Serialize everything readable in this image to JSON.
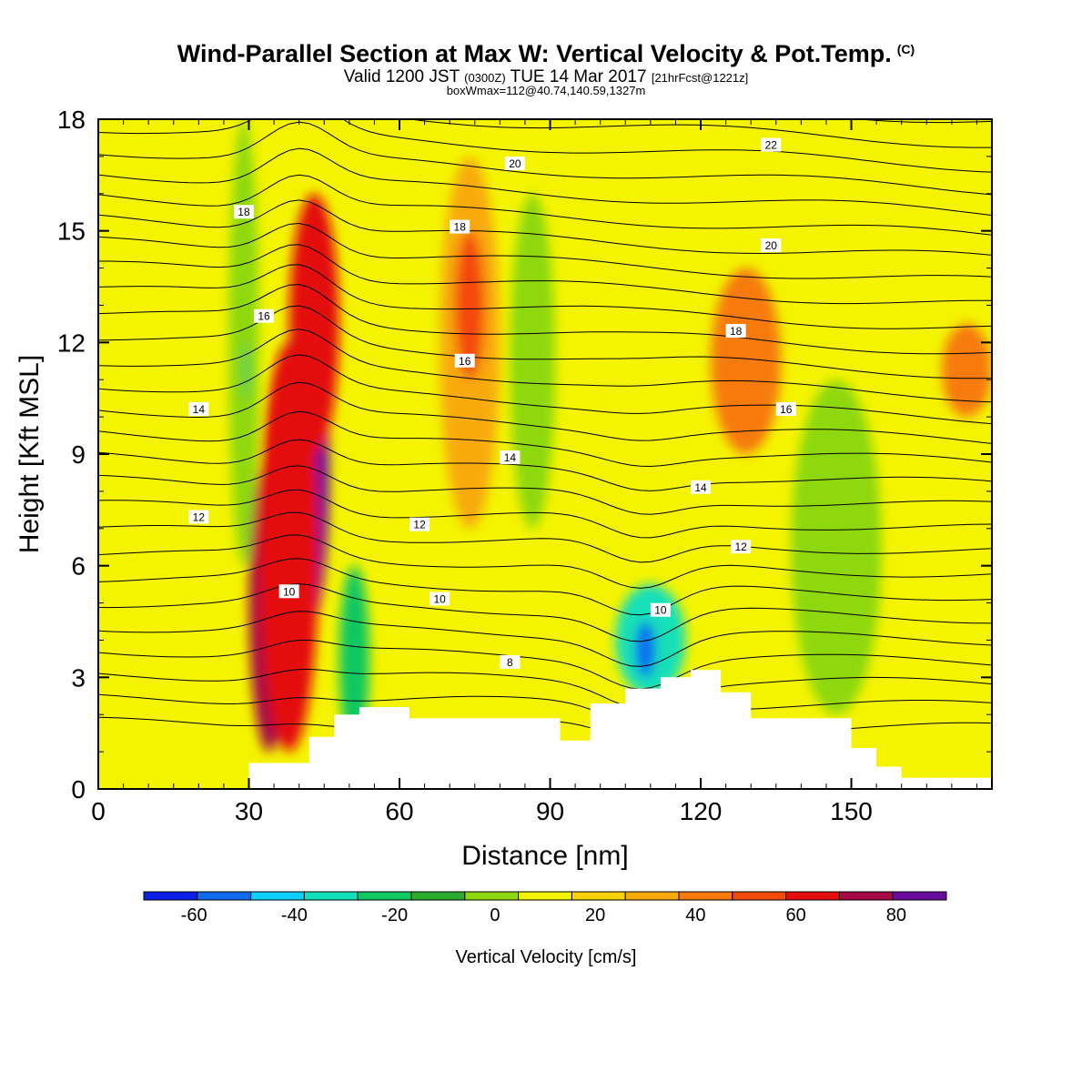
{
  "header": {
    "title": "Wind-Parallel Section at Max W: Vertical Velocity & Pot.Temp.",
    "copyright": "(C)",
    "valid_a": "Valid 1200 JST ",
    "valid_z": "(0300Z)",
    "valid_b": " TUE 14 Mar 2017 ",
    "valid_fcst": "[21hrFcst@1221z]",
    "boxwmax": "boxWmax=112@40.74,140.59,1327m"
  },
  "chart_data": {
    "type": "heatmap",
    "xlabel": "Distance [nm]",
    "ylabel": "Height [Kft MSL]",
    "xlim": [
      0,
      178
    ],
    "ylim": [
      0,
      18
    ],
    "xticks": [
      0,
      30,
      60,
      90,
      120,
      150
    ],
    "yticks": [
      0,
      3,
      6,
      9,
      12,
      15,
      18
    ],
    "colorbar": {
      "label": "Vertical Velocity [cm/s]",
      "bounds": [
        -70,
        -60,
        -50,
        -40,
        -30,
        -20,
        -10,
        0,
        10,
        20,
        30,
        40,
        50,
        60,
        70,
        80,
        90
      ],
      "colors": [
        "#0b1fe6",
        "#0f6af0",
        "#0ccfff",
        "#12e0b8",
        "#0fc862",
        "#2aad2c",
        "#8ed80c",
        "#f4f400",
        "#f9d205",
        "#f8aa0a",
        "#f77a0d",
        "#f44a07",
        "#e40e0e",
        "#a50a46",
        "#6b0ca0"
      ],
      "tick_labels": [
        "-60",
        "-40",
        "-20",
        "0",
        "20",
        "40",
        "60",
        "80"
      ]
    },
    "vertical_velocity_cells": [
      {
        "x": [
          0,
          10
        ],
        "z": [
          1,
          16
        ],
        "w": 8
      },
      {
        "x": [
          30,
          38
        ],
        "z": [
          1,
          9
        ],
        "w": 65
      },
      {
        "x": [
          36,
          46
        ],
        "z": [
          4,
          13
        ],
        "w": 80
      },
      {
        "x": [
          32,
          44
        ],
        "z": [
          1,
          12
        ],
        "w": 55
      },
      {
        "x": [
          38,
          48
        ],
        "z": [
          9,
          16
        ],
        "w": 50
      },
      {
        "x": [
          26,
          32
        ],
        "z": [
          6,
          18
        ],
        "w": -10
      },
      {
        "x": [
          29,
          30
        ],
        "z": [
          10.5,
          12
        ],
        "w": -25
      },
      {
        "x": [
          48,
          54
        ],
        "z": [
          1,
          6
        ],
        "w": -30
      },
      {
        "x": [
          68,
          80
        ],
        "z": [
          7,
          17
        ],
        "w": 25
      },
      {
        "x": [
          71,
          77
        ],
        "z": [
          11,
          15
        ],
        "w": 40
      },
      {
        "x": [
          82,
          91
        ],
        "z": [
          7,
          16
        ],
        "w": -10
      },
      {
        "x": [
          103,
          117
        ],
        "z": [
          2.5,
          5.5
        ],
        "w": -40
      },
      {
        "x": [
          107,
          111
        ],
        "z": [
          3,
          4.5
        ],
        "w": -55
      },
      {
        "x": [
          122,
          136
        ],
        "z": [
          9,
          14
        ],
        "w": 35
      },
      {
        "x": [
          138,
          156
        ],
        "z": [
          2,
          11
        ],
        "w": -8
      },
      {
        "x": [
          168,
          178
        ],
        "z": [
          10,
          12.5
        ],
        "w": 30
      }
    ],
    "potential_temperature_isolines": {
      "levels": [
        8,
        10,
        12,
        14,
        16,
        18,
        20,
        22
      ],
      "labels": [
        "8",
        "10",
        "12",
        "14",
        "16",
        "18",
        "20",
        "22"
      ]
    },
    "terrain": {
      "x": [
        0,
        30,
        42,
        47,
        52,
        62,
        88,
        92,
        98,
        105,
        112,
        118,
        124,
        130,
        140,
        150,
        155,
        160,
        178
      ],
      "z": [
        0,
        0.7,
        1.4,
        2.0,
        2.2,
        1.9,
        1.9,
        1.3,
        2.3,
        2.7,
        3.0,
        3.2,
        2.6,
        1.9,
        1.9,
        1.1,
        0.6,
        0.3,
        0.3
      ]
    }
  }
}
